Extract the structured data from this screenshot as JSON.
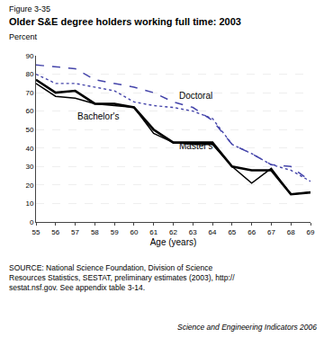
{
  "chart_data": {
    "type": "line",
    "title": "Older S&E degree holders working full time: 2003",
    "xlabel": "Age (years)",
    "ylabel": "Percent",
    "annotations": [
      "Figure 3-35",
      "Doctoral",
      "Bachelor's",
      "Master's",
      "SOURCE: National Science Foundation, Division of Science\nResources Statistics, SESTAT, preliminary estimates (2003), http://\nsestat.nsf.gov. See appendix table 3-14.",
      "Science and Engineering Indicators 2006"
    ],
    "x": [
      55,
      56,
      57,
      58,
      59,
      60,
      61,
      62,
      63,
      64,
      65,
      66,
      67,
      68,
      69
    ],
    "series": [
      {
        "color": "#4444aa",
        "line_style": "dashed",
        "values": [
          85,
          84,
          83,
          77,
          75,
          73,
          70,
          65,
          62,
          55,
          42,
          37,
          31,
          30,
          22
        ]
      },
      {
        "color": "#4444aa",
        "line_style": "dotted",
        "values": [
          80,
          75,
          75,
          73,
          71,
          65,
          63,
          62,
          60,
          56,
          42,
          37,
          31,
          28,
          22
        ]
      },
      {
        "color": "#000000",
        "line_style": "solid",
        "values": [
          77,
          70,
          71,
          64,
          64,
          62,
          50,
          43,
          43,
          43,
          30,
          28,
          28,
          15,
          16
        ]
      },
      {
        "color": "#000000",
        "line_style": "solid",
        "values": [
          75,
          68,
          67,
          64,
          63,
          62,
          48,
          43,
          42,
          42,
          30,
          21,
          29,
          15,
          16
        ]
      }
    ],
    "xlim": [
      55,
      69
    ],
    "xticks": [
      55,
      56,
      57,
      58,
      59,
      60,
      61,
      62,
      63,
      64,
      65,
      66,
      67,
      68,
      69
    ],
    "ylim": [
      0,
      90
    ],
    "yticks": [
      0,
      10,
      20,
      30,
      40,
      50,
      60,
      70,
      80,
      90
    ],
    "grid": true
  }
}
